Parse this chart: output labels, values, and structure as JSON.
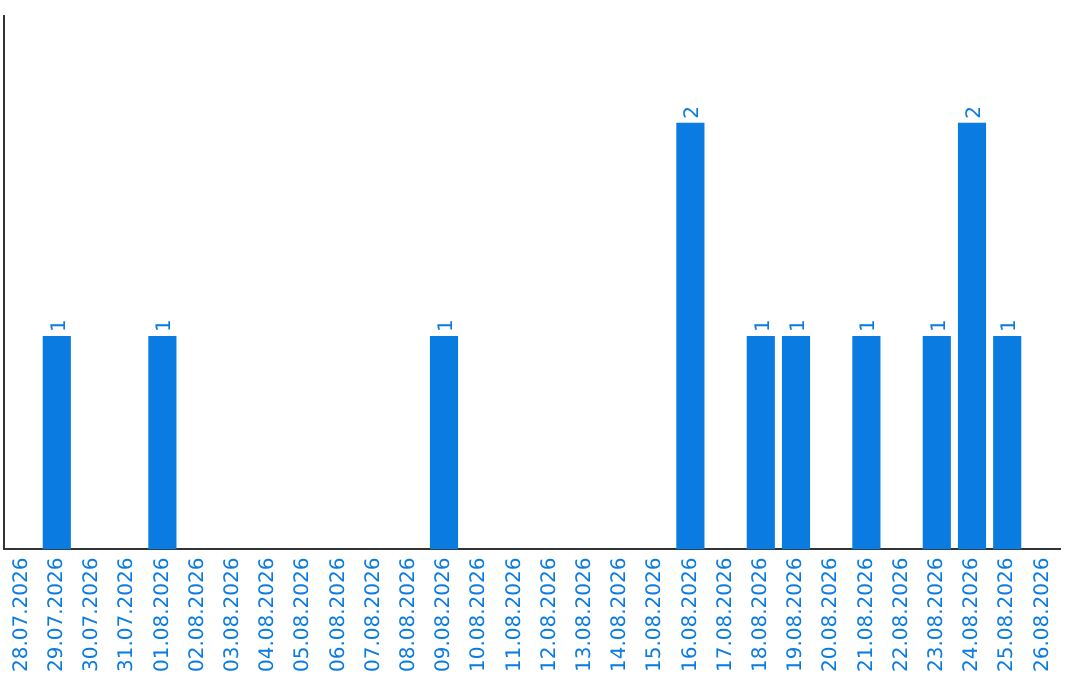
{
  "chart_data": {
    "type": "bar",
    "categories": [
      "28.07.2026",
      "29.07.2026",
      "30.07.2026",
      "31.07.2026",
      "01.08.2026",
      "02.08.2026",
      "03.08.2026",
      "04.08.2026",
      "05.08.2026",
      "06.08.2026",
      "07.08.2026",
      "08.08.2026",
      "09.08.2026",
      "10.08.2026",
      "11.08.2026",
      "12.08.2026",
      "13.08.2026",
      "14.08.2026",
      "15.08.2026",
      "16.08.2026",
      "17.08.2026",
      "18.08.2026",
      "19.08.2026",
      "20.08.2026",
      "21.08.2026",
      "22.08.2026",
      "23.08.2026",
      "24.08.2026",
      "25.08.2026",
      "26.08.2026"
    ],
    "values": [
      0,
      1,
      0,
      0,
      1,
      0,
      0,
      0,
      0,
      0,
      0,
      0,
      1,
      0,
      0,
      0,
      0,
      0,
      0,
      2,
      0,
      1,
      1,
      0,
      1,
      0,
      1,
      2,
      1,
      0
    ],
    "value_labels": [
      null,
      "1",
      null,
      null,
      "1",
      null,
      null,
      null,
      null,
      null,
      null,
      null,
      "1",
      null,
      null,
      null,
      null,
      null,
      null,
      "2",
      null,
      "1",
      "1",
      null,
      "1",
      null,
      "1",
      "2",
      "1",
      null
    ],
    "color": "#0a7be0",
    "grid": false,
    "legend": false,
    "tick_labels": "x"
  }
}
